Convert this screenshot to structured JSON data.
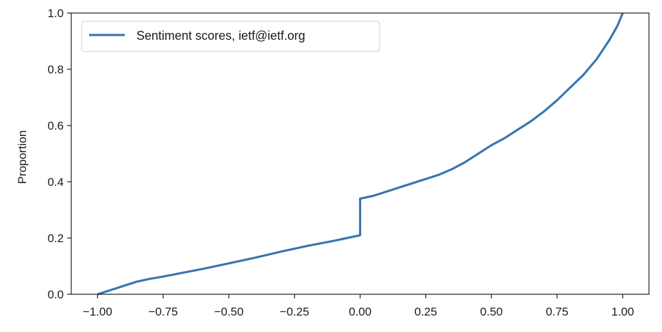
{
  "chart_data": {
    "type": "line",
    "title": "",
    "xlabel": "",
    "ylabel": "Proportion",
    "xlim": [
      -1.1,
      1.1
    ],
    "ylim": [
      0.0,
      1.0
    ],
    "x_ticks": [
      {
        "value": -1.0,
        "label": "−1.00"
      },
      {
        "value": -0.75,
        "label": "−0.75"
      },
      {
        "value": -0.5,
        "label": "−0.50"
      },
      {
        "value": -0.25,
        "label": "−0.25"
      },
      {
        "value": 0.0,
        "label": "0.00"
      },
      {
        "value": 0.25,
        "label": "0.25"
      },
      {
        "value": 0.5,
        "label": "0.50"
      },
      {
        "value": 0.75,
        "label": "0.75"
      },
      {
        "value": 1.0,
        "label": "1.00"
      }
    ],
    "y_ticks": [
      {
        "value": 0.0,
        "label": "0.0"
      },
      {
        "value": 0.2,
        "label": "0.2"
      },
      {
        "value": 0.4,
        "label": "0.4"
      },
      {
        "value": 0.6,
        "label": "0.6"
      },
      {
        "value": 0.8,
        "label": "0.8"
      },
      {
        "value": 1.0,
        "label": "1.0"
      }
    ],
    "grid": false,
    "legend_position": "upper-left",
    "series": [
      {
        "name": "Sentiment scores, ietf@ietf.org",
        "color": "#3a75b0",
        "x": [
          -1.0,
          -0.95,
          -0.9,
          -0.85,
          -0.8,
          -0.75,
          -0.7,
          -0.6,
          -0.5,
          -0.4,
          -0.3,
          -0.25,
          -0.2,
          -0.1,
          0.0,
          0.0,
          0.05,
          0.1,
          0.15,
          0.2,
          0.25,
          0.3,
          0.35,
          0.4,
          0.45,
          0.5,
          0.55,
          0.6,
          0.65,
          0.7,
          0.75,
          0.8,
          0.85,
          0.9,
          0.95,
          0.98,
          1.0
        ],
        "y": [
          0.0,
          0.015,
          0.03,
          0.045,
          0.055,
          0.063,
          0.072,
          0.09,
          0.11,
          0.13,
          0.152,
          0.162,
          0.172,
          0.19,
          0.21,
          0.34,
          0.35,
          0.365,
          0.38,
          0.395,
          0.41,
          0.425,
          0.445,
          0.47,
          0.5,
          0.53,
          0.555,
          0.585,
          0.615,
          0.65,
          0.69,
          0.735,
          0.78,
          0.835,
          0.905,
          0.955,
          1.0
        ]
      }
    ]
  }
}
